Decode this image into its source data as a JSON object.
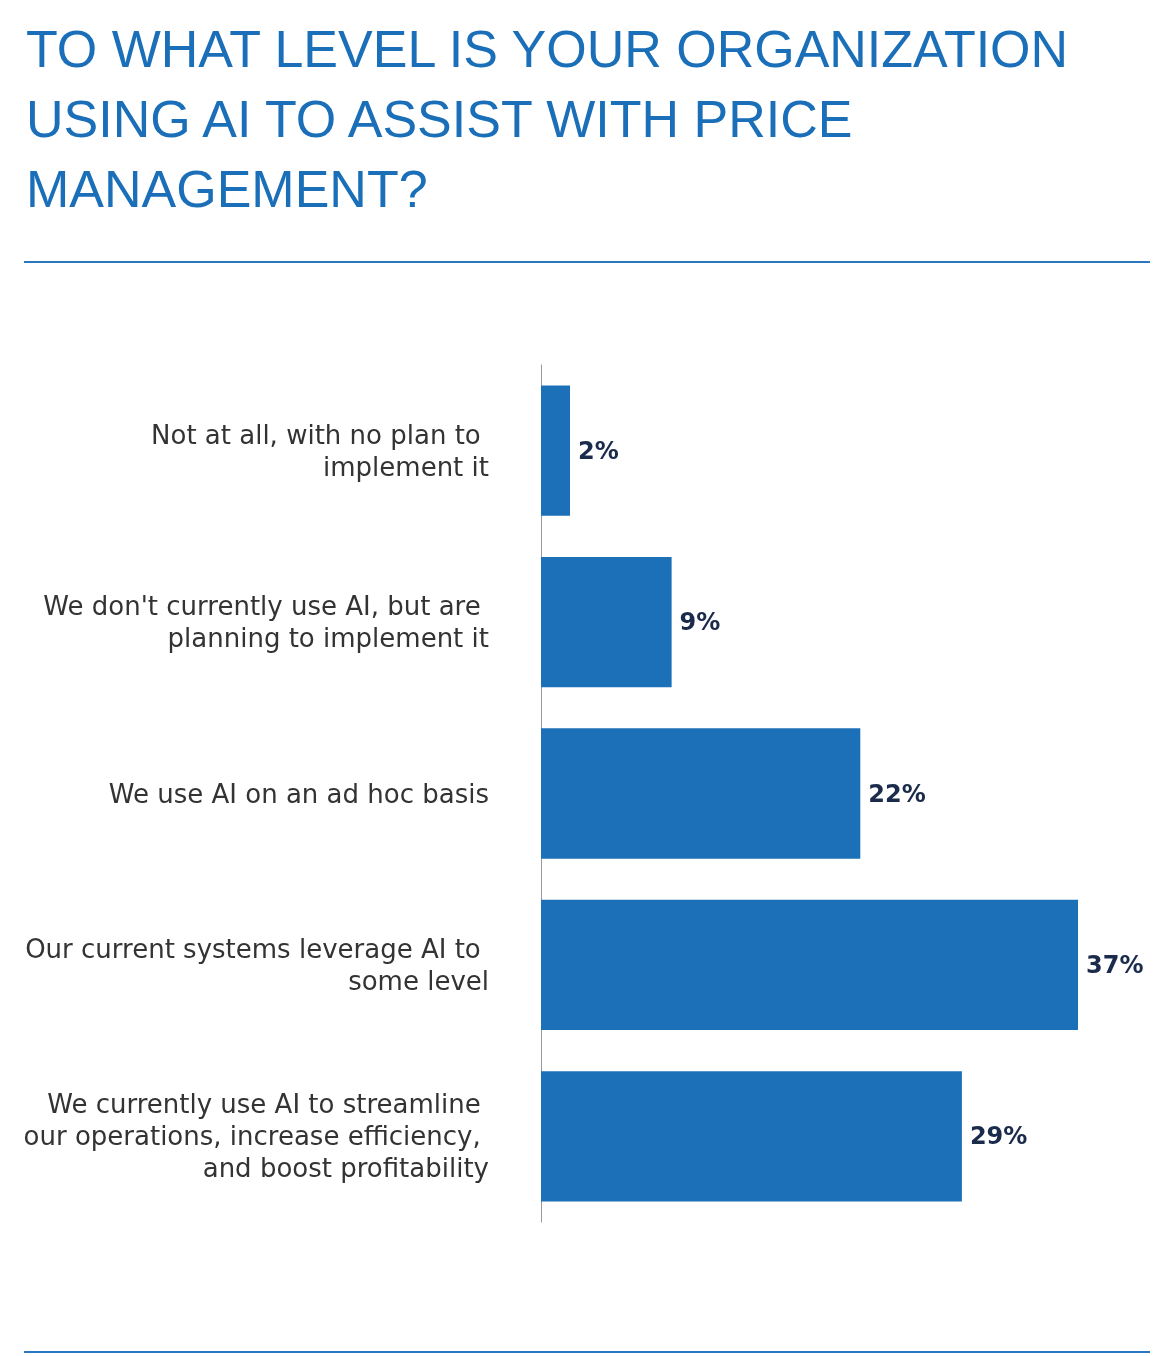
{
  "chart_data": {
    "type": "bar",
    "orientation": "horizontal",
    "title": "TO WHAT LEVEL IS YOUR ORGANIZATION USING AI TO ASSIST WITH PRICE MANAGEMENT?",
    "categories": [
      "Not at all, with no plan to implement it",
      "We don't currently use AI, but are planning to implement it",
      "We use AI on an ad hoc basis",
      "Our current systems leverage AI to some level",
      "We currently use AI to streamline our operations, increase efficiency, and boost profitability"
    ],
    "values": [
      2,
      9,
      22,
      37,
      29
    ],
    "value_labels": [
      "2%",
      "9%",
      "22%",
      "37%",
      "29%"
    ],
    "color": "#1c70b8"
  }
}
